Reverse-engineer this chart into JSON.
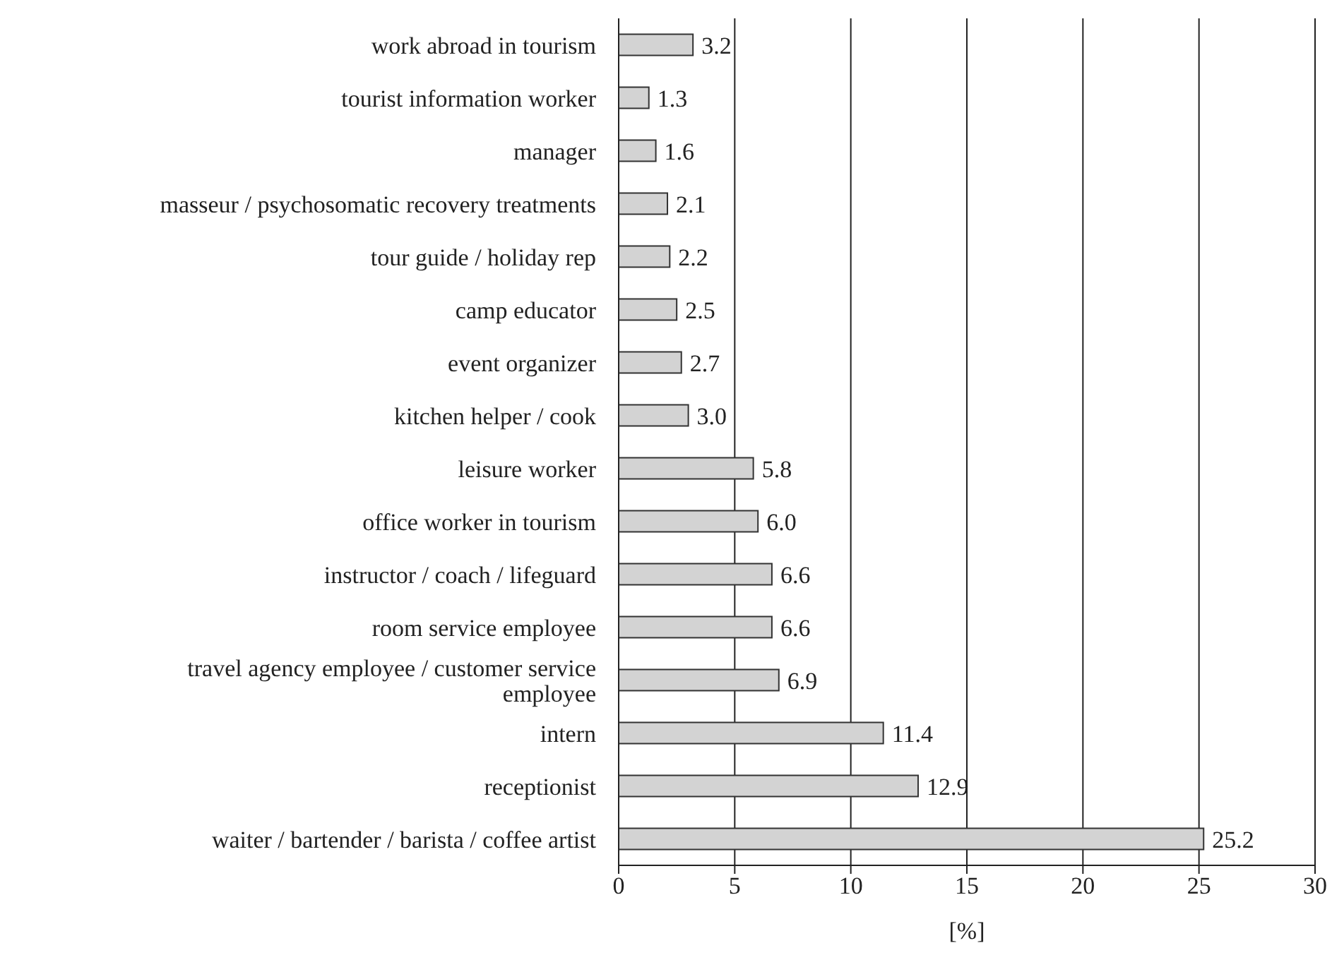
{
  "chart_data": {
    "type": "bar",
    "orientation": "horizontal",
    "xlabel": "[%]",
    "categories": [
      "work abroad in tourism",
      "tourist information worker",
      "manager",
      "masseur / psychosomatic recovery treatments",
      "tour guide / holiday rep",
      "camp educator",
      "event organizer",
      "kitchen helper / cook",
      "leisure worker",
      "office worker in tourism",
      "instructor / coach / lifeguard",
      "room service employee",
      "travel agency employee / customer service employee",
      "intern",
      "receptionist",
      "waiter / bartender / barista / coffee artist"
    ],
    "values": [
      3.2,
      1.3,
      1.6,
      2.1,
      2.2,
      2.5,
      2.7,
      3.0,
      5.8,
      6.0,
      6.6,
      6.6,
      6.9,
      11.4,
      12.9,
      25.2
    ],
    "value_labels": [
      "3.2",
      "1.3",
      "1.6",
      "2.1",
      "2.2",
      "2.5",
      "2.7",
      "3.0",
      "5.8",
      "6.0",
      "6.6",
      "6.6",
      "6.9",
      "11.4",
      "12.9",
      "25.2"
    ],
    "color": "#d3d3d3",
    "xlim": [
      0,
      30
    ],
    "xticks": [
      0,
      5,
      10,
      15,
      20,
      25,
      30
    ],
    "grid": "x",
    "legend": false
  }
}
